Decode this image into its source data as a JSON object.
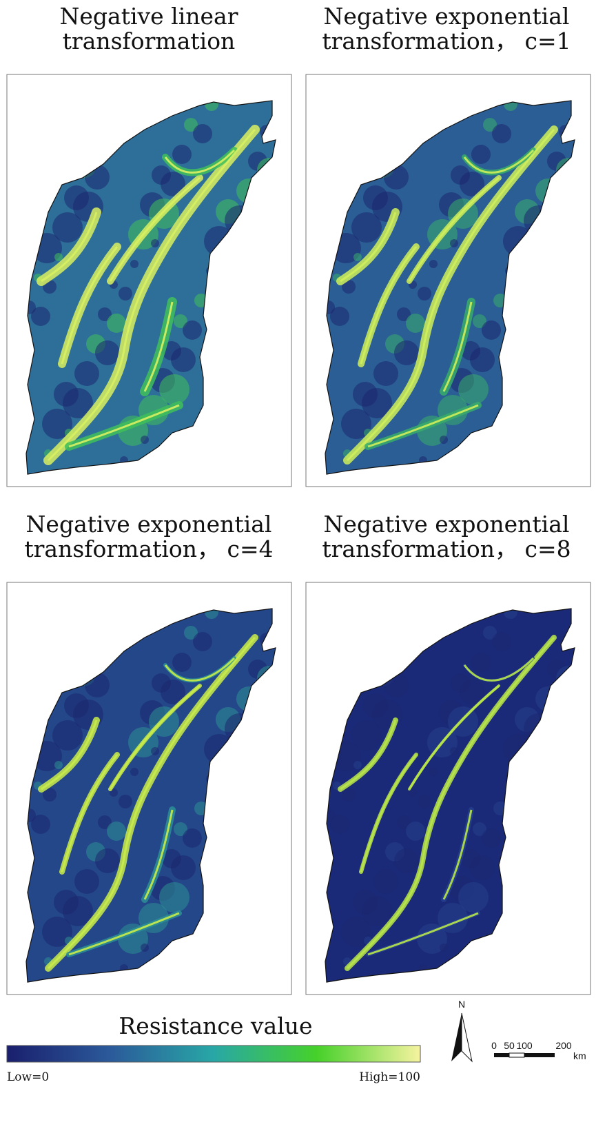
{
  "panels": [
    {
      "title_lines": [
        "Negative linear",
        "transformation"
      ]
    },
    {
      "title_lines": [
        "Negative exponential",
        "transformation， c=1"
      ]
    },
    {
      "title_lines": [
        "Negative exponential",
        "transformation， c=4"
      ]
    },
    {
      "title_lines": [
        "Negative exponential",
        "transformation， c=8"
      ]
    }
  ],
  "legend": {
    "title": "Resistance value",
    "low": "Low=0",
    "high": "High=100"
  },
  "north": "N",
  "scale_bar": {
    "labels": [
      "0",
      "50",
      "100",
      "200"
    ],
    "unit": "km"
  }
}
